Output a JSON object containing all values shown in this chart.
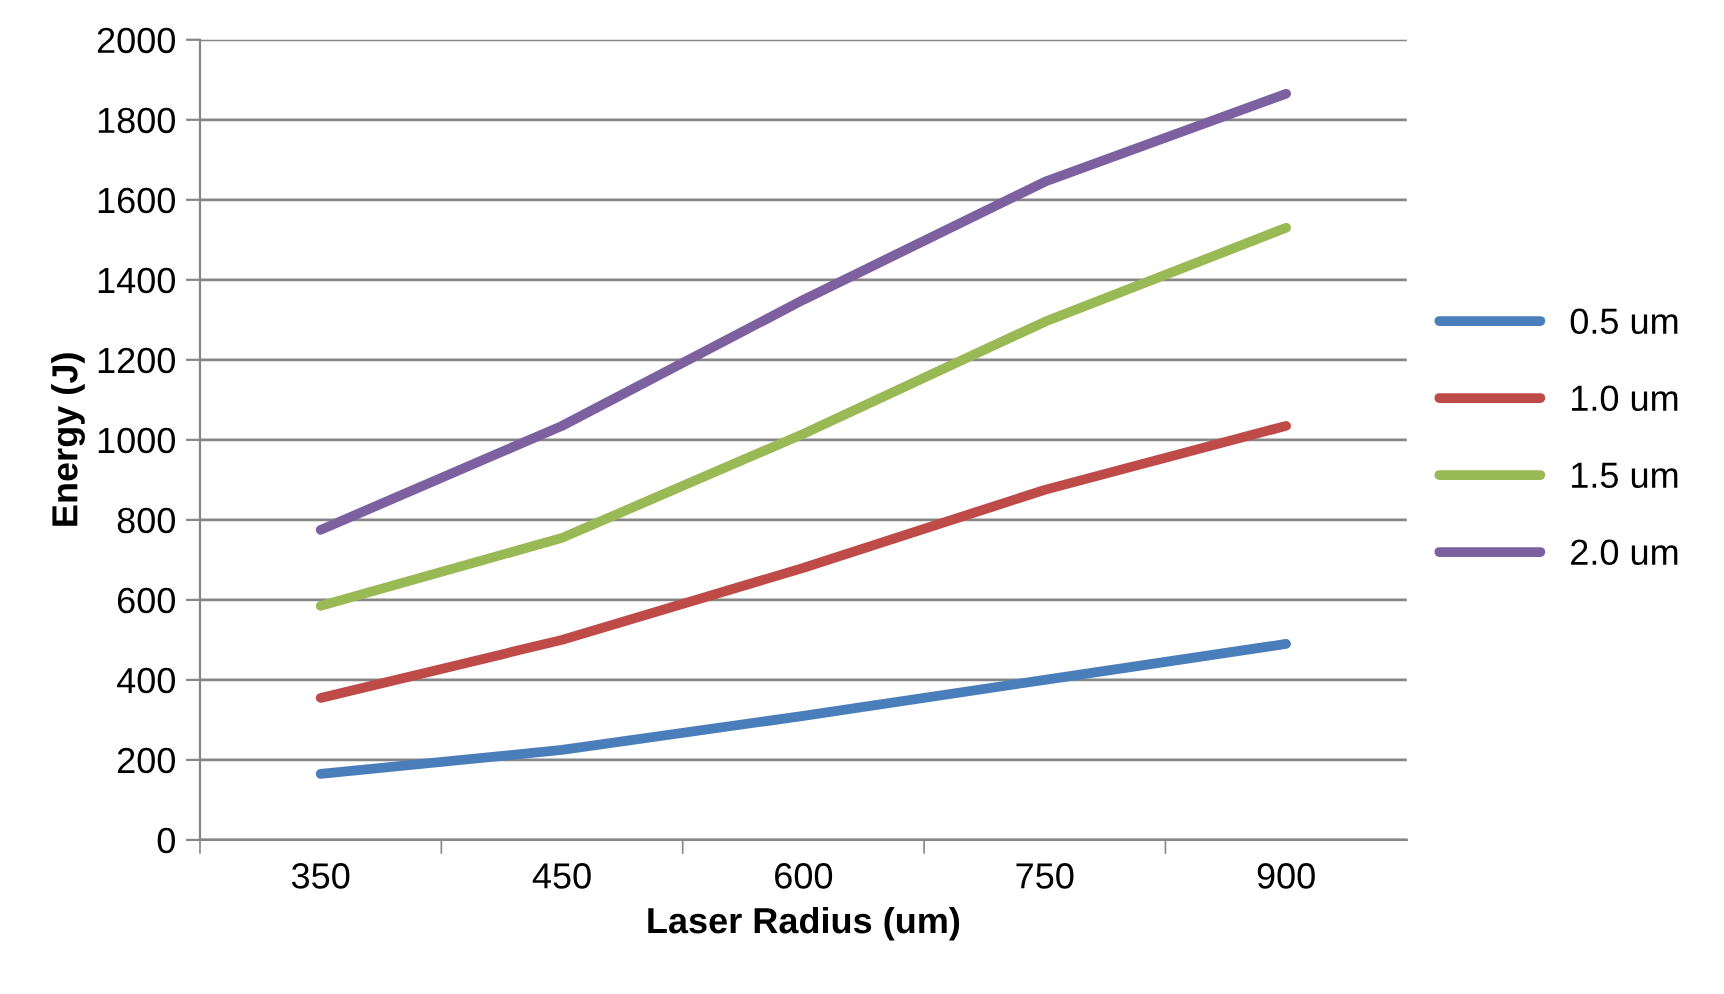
{
  "chart_data": {
    "type": "line",
    "xlabel": "Laser Radius (um)",
    "ylabel": "Energy (J)",
    "categories": [
      "350",
      "450",
      "600",
      "750",
      "900"
    ],
    "series": [
      {
        "name": "0.5 um",
        "color": "#4a7ebb",
        "values": [
          165,
          225,
          310,
          400,
          490
        ]
      },
      {
        "name": "1.0 um",
        "color": "#be4b48",
        "values": [
          355,
          500,
          680,
          875,
          1035
        ]
      },
      {
        "name": "1.5 um",
        "color": "#98b954",
        "values": [
          585,
          755,
          1015,
          1295,
          1530
        ]
      },
      {
        "name": "2.0 um",
        "color": "#7d60a0",
        "values": [
          775,
          1035,
          1350,
          1645,
          1865
        ]
      }
    ],
    "ylim": [
      0,
      2000
    ],
    "yticks": [
      0,
      200,
      400,
      600,
      800,
      1000,
      1200,
      1400,
      1600,
      1800,
      2000
    ],
    "grid": "y",
    "legend": "right",
    "marker": "none",
    "line_style": "solid"
  }
}
